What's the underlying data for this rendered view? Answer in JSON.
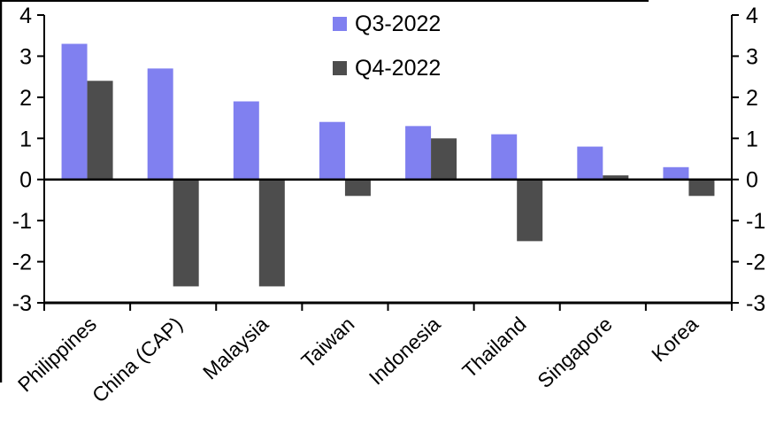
{
  "chart_data": {
    "type": "bar",
    "title": "",
    "categories": [
      "Philippines",
      "China (CAP)",
      "Malaysia",
      "Taiwan",
      "Indonesia",
      "Thailand",
      "Singapore",
      "Korea"
    ],
    "series": [
      {
        "name": "Q3-2022",
        "color": "#8080f0",
        "values": [
          3.3,
          2.7,
          1.9,
          1.4,
          1.3,
          1.1,
          0.8,
          0.3
        ]
      },
      {
        "name": "Q4-2022",
        "color": "#4d4d4d",
        "values": [
          2.4,
          -2.6,
          -2.6,
          -0.4,
          1.0,
          -1.5,
          0.1,
          -0.4
        ]
      }
    ],
    "ylim": [
      -3,
      4
    ],
    "yticks": [
      -3,
      -2,
      -1,
      0,
      1,
      2,
      3,
      4
    ],
    "y_axis_sides": "both",
    "xlabel": "",
    "ylabel": "",
    "grid": false,
    "legend_position": "top-center",
    "axis_color": "#000000",
    "background": "#ffffff"
  }
}
